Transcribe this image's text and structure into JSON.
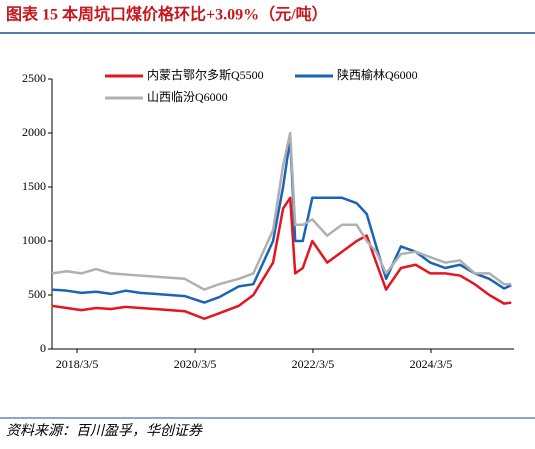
{
  "header": {
    "title": "图表 15 本周坑口煤价格环比+3.09%（元/吨）"
  },
  "chart_data": {
    "type": "line",
    "x": [
      "2017/10/1",
      "2018/1/1",
      "2018/4/1",
      "2018/7/1",
      "2018/10/1",
      "2019/1/1",
      "2019/4/1",
      "2019/7/1",
      "2019/10/1",
      "2020/1/1",
      "2020/5/1",
      "2020/8/1",
      "2020/12/1",
      "2021/3/1",
      "2021/7/1",
      "2021/9/1",
      "2021/10/15",
      "2021/11/15",
      "2022/1/1",
      "2022/3/1",
      "2022/6/1",
      "2022/9/1",
      "2022/12/1",
      "2023/2/1",
      "2023/4/1",
      "2023/6/1",
      "2023/9/1",
      "2023/12/1",
      "2024/3/1",
      "2024/6/1",
      "2024/9/1",
      "2024/12/1",
      "2025/3/1",
      "2025/6/1",
      "2025/7/15"
    ],
    "series": [
      {
        "name": "内蒙古鄂尔多斯Q5500",
        "color": "#e3161f",
        "values": [
          400,
          380,
          360,
          380,
          370,
          390,
          380,
          370,
          360,
          350,
          280,
          330,
          400,
          500,
          800,
          1300,
          1400,
          700,
          750,
          1000,
          800,
          900,
          1000,
          1050,
          800,
          550,
          750,
          780,
          700,
          700,
          680,
          600,
          500,
          420,
          430
        ]
      },
      {
        "name": "陕西榆林Q6000",
        "color": "#1a63b6",
        "values": [
          550,
          540,
          520,
          530,
          510,
          540,
          520,
          510,
          500,
          490,
          430,
          480,
          580,
          600,
          1000,
          1500,
          1950,
          1000,
          1000,
          1400,
          1400,
          1400,
          1350,
          1250,
          950,
          650,
          950,
          900,
          800,
          750,
          780,
          700,
          650,
          560,
          590
        ]
      },
      {
        "name": "山西临汾Q6000",
        "color": "#b0b0b0",
        "values": [
          700,
          720,
          700,
          740,
          700,
          690,
          680,
          670,
          660,
          650,
          550,
          600,
          650,
          700,
          1100,
          1700,
          2000,
          1150,
          1150,
          1200,
          1050,
          1150,
          1150,
          1000,
          900,
          700,
          880,
          900,
          850,
          800,
          820,
          700,
          700,
          600,
          600
        ]
      }
    ],
    "xlim": [
      "2017/10/1",
      "2025/8/1"
    ],
    "xticks": [
      "2018/3/5",
      "2020/3/5",
      "2022/3/5",
      "2024/3/5"
    ],
    "ylim": [
      0,
      2500
    ],
    "yticks": [
      0,
      500,
      1000,
      1500,
      2000,
      2500
    ],
    "grid": false
  },
  "footer": {
    "source": "资料来源：百川盈孚，华创证券"
  }
}
